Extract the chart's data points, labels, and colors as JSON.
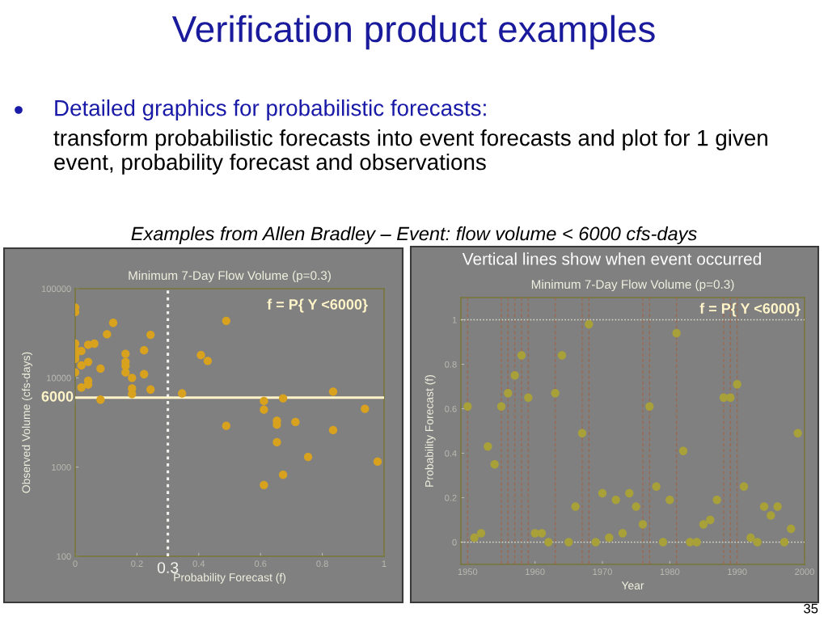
{
  "chart_data": [
    {
      "type": "scatter",
      "title": "Minimum 7-Day Flow Volume (p=0.3)",
      "xlabel": "Probability Forecast (f)",
      "ylabel": "Observed Volume (cfs-days)",
      "log": "y",
      "marker": "circle",
      "color": "#d9a21e",
      "x": [
        0,
        0,
        0,
        0,
        0,
        0,
        0,
        0.02,
        0.02,
        0.02,
        0.042,
        0.042,
        0.042,
        0.042,
        0.062,
        0.082,
        0.082,
        0.103,
        0.123,
        0.163,
        0.163,
        0.163,
        0.163,
        0.184,
        0.184,
        0.184,
        0.223,
        0.223,
        0.244,
        0.244,
        0.346,
        0.407,
        0.429,
        0.489,
        0.489,
        0.611,
        0.611,
        0.611,
        0.653,
        0.653,
        0.653,
        0.673,
        0.673,
        0.713,
        0.754,
        0.835,
        0.835,
        0.938,
        0.979
      ],
      "values": [
        61500,
        54700,
        24200,
        20700,
        18000,
        16300,
        11500,
        20000,
        13800,
        7800,
        23500,
        15100,
        9300,
        8400,
        24200,
        12700,
        5700,
        30800,
        41400,
        18600,
        15100,
        13600,
        11500,
        10000,
        7600,
        6600,
        20400,
        11000,
        30400,
        7400,
        6700,
        18000,
        15500,
        43600,
        2900,
        5500,
        4400,
        630,
        3300,
        3000,
        1900,
        5900,
        820,
        3200,
        1300,
        7000,
        2600,
        4500,
        1150
      ],
      "xlim": [
        0,
        1
      ],
      "ylim": [
        100,
        100000
      ],
      "xticks": [
        0,
        0.2,
        0.4,
        0.6,
        0.8,
        1
      ],
      "yticks": [
        100,
        1000,
        10000,
        100000
      ],
      "ref_lines": [
        {
          "axis": "y",
          "value": 6000,
          "label": "6000",
          "color": "#fff5c8",
          "line_style": "solid"
        },
        {
          "axis": "x",
          "value": 0.3,
          "label": "0.3",
          "color": "#f4f4ee",
          "line_style": "dotted"
        }
      ],
      "annotations": [
        "Verification product examples",
        "Detailed graphics for probabilistic forecasts:",
        "transform probabilistic forecasts into event forecasts and plot for 1 given event, probability forecast and observations",
        "Examples from Allen Bradley – Event: flow volume < 6000 cfs-days",
        "f = P{ Y <6000}"
      ]
    },
    {
      "type": "scatter",
      "title": "Minimum 7-Day Flow Volume (p=0.3)",
      "xlabel": "Year",
      "ylabel": "Probability Forecast (f)",
      "marker": "circle",
      "color": "#a8a038",
      "x": [
        1950,
        1951,
        1952,
        1953,
        1954,
        1955,
        1956,
        1957,
        1958,
        1959,
        1960,
        1961,
        1962,
        1963,
        1964,
        1965,
        1966,
        1967,
        1968,
        1969,
        1970,
        1971,
        1972,
        1973,
        1974,
        1975,
        1976,
        1977,
        1978,
        1979,
        1980,
        1981,
        1982,
        1983,
        1984,
        1985,
        1986,
        1987,
        1988,
        1989,
        1990,
        1991,
        1992,
        1993,
        1994,
        1995,
        1996,
        1997,
        1998,
        1999
      ],
      "values": [
        0.61,
        0.02,
        0.04,
        0.43,
        0.35,
        0.61,
        0.67,
        0.75,
        0.84,
        0.65,
        0.04,
        0.04,
        0,
        0.67,
        0.84,
        0,
        0.16,
        0.49,
        0.98,
        0,
        0.22,
        0.02,
        0.19,
        0.04,
        0.22,
        0.16,
        0.08,
        0.61,
        0.25,
        0,
        0.19,
        0.94,
        0.41,
        0,
        0,
        0.08,
        0.1,
        0.19,
        0.65,
        0.65,
        0.71,
        0.25,
        0.02,
        0,
        0.16,
        0.12,
        0.16,
        0,
        0.06,
        0.49
      ],
      "xlim": [
        1949,
        2000
      ],
      "ylim": [
        -0.1,
        1.1
      ],
      "xticks": [
        1950,
        1960,
        1970,
        1980,
        1990,
        2000
      ],
      "yticks": [
        0,
        0.2,
        0.4,
        0.6,
        0.8,
        1
      ],
      "ref_lines": [
        {
          "axis": "x",
          "value": 1950,
          "color": "#9a6a50",
          "line_style": "dashed"
        },
        {
          "axis": "x",
          "value": 1955,
          "color": "#9a6a50",
          "line_style": "dashed"
        },
        {
          "axis": "x",
          "value": 1956,
          "color": "#9a6a50",
          "line_style": "dashed"
        },
        {
          "axis": "x",
          "value": 1957,
          "color": "#9a6a50",
          "line_style": "dashed"
        },
        {
          "axis": "x",
          "value": 1958,
          "color": "#9a6a50",
          "line_style": "dashed"
        },
        {
          "axis": "x",
          "value": 1959,
          "color": "#9a6a50",
          "line_style": "dashed"
        },
        {
          "axis": "x",
          "value": 1963,
          "color": "#9a6a50",
          "line_style": "dashed"
        },
        {
          "axis": "x",
          "value": 1967,
          "color": "#9a6a50",
          "line_style": "dashed"
        },
        {
          "axis": "x",
          "value": 1968,
          "color": "#9a6a50",
          "line_style": "dashed"
        },
        {
          "axis": "x",
          "value": 1976,
          "color": "#9a6a50",
          "line_style": "dashed"
        },
        {
          "axis": "x",
          "value": 1977,
          "color": "#9a6a50",
          "line_style": "dashed"
        },
        {
          "axis": "x",
          "value": 1981,
          "color": "#9a6a50",
          "line_style": "dashed"
        },
        {
          "axis": "x",
          "value": 1988,
          "color": "#9a6a50",
          "line_style": "dashed"
        },
        {
          "axis": "x",
          "value": 1989,
          "color": "#9a6a50",
          "line_style": "dashed"
        },
        {
          "axis": "x",
          "value": 1990,
          "color": "#9a6a50",
          "line_style": "dashed"
        },
        {
          "axis": "y",
          "value": 0,
          "color": "#d8d8c8",
          "line_style": "dotted"
        },
        {
          "axis": "y",
          "value": 1,
          "color": "#d8d8c8",
          "line_style": "dotted"
        }
      ],
      "annotations": [
        "f = P{ Y <6000}",
        "Vertical lines show when event occurred",
        "35"
      ]
    }
  ]
}
